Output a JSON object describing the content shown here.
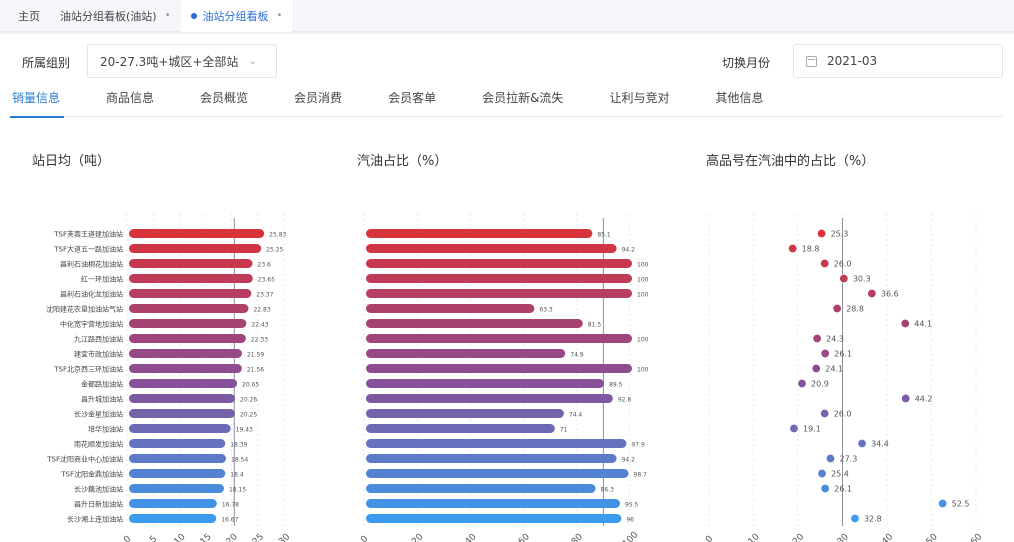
{
  "page_tabs": [
    {
      "label": "主页",
      "active": false,
      "closable": false
    },
    {
      "label": "油站分组看板(油站)",
      "active": false,
      "closable": true
    },
    {
      "label": "油站分组看板",
      "active": true,
      "closable": true
    }
  ],
  "filters": {
    "group_label": "所属组别",
    "group_value": "20-27.3吨+城区+全部站",
    "month_label": "切换月份",
    "month_value": "2021-03"
  },
  "sub_tabs": [
    "销量信息",
    "商品信息",
    "会员概览",
    "会员消费",
    "会员客单",
    "会员拉新&流失",
    "让利与竞对",
    "其他信息"
  ],
  "active_sub_tab": 0,
  "colors": {
    "accent": "#2b7cd3",
    "gradient_top": "#d7333b",
    "gradient_mid": "#8a4d93",
    "gradient_bottom": "#3a9bef"
  },
  "chart_data": [
    {
      "type": "bar",
      "orientation": "horizontal",
      "title": "站日均（吨）",
      "categories": [
        "TSF芙蓉王道建加油站",
        "TSF大道五一路加油站",
        "昌利石油桐花加油站",
        "红一环加油站",
        "昌利石油化龙加油站",
        "沈阳建花农垦加油站气站",
        "中化宽宇营地加油站",
        "九江路西加油站",
        "建宜市政加油站",
        "TSF北京西三环加油站",
        "金都路加油站",
        "昌升城加油站",
        "长沙金星加油站",
        "培华加油站",
        "雨花顺发加油站",
        "TSF沈阳商业中心加油站",
        "TSF沈阳金鼎加油站",
        "长沙藕池加油站",
        "昌升日新加油站",
        "长沙湘上连加油站"
      ],
      "values": [
        25.83,
        25.25,
        23.6,
        23.65,
        23.37,
        22.83,
        22.43,
        22.33,
        21.59,
        21.56,
        20.65,
        20.26,
        20.25,
        19.43,
        18.39,
        18.54,
        18.4,
        18.15,
        16.78,
        16.67
      ],
      "value_labels": [
        "25.83",
        "25.25",
        "23.6",
        "23.65",
        "23.37",
        "22.83",
        "22.43",
        "22.33",
        "21.59",
        "21.56",
        "20.65",
        "20.26",
        "20.25",
        "19.43",
        "18.39",
        "18.54",
        "18.4",
        "18.15",
        "16.78",
        "16.67"
      ],
      "xticks": [
        "0",
        "5",
        "10",
        "15",
        "20",
        "25",
        "30"
      ],
      "xlim": [
        0,
        30
      ],
      "reference_line": 20.5,
      "grid": true
    },
    {
      "type": "bar",
      "orientation": "horizontal",
      "title": "汽油占比（%）",
      "values": [
        85.1,
        94.2,
        100,
        100,
        100,
        63.3,
        81.5,
        100,
        74.9,
        100,
        89.5,
        92.8,
        74.4,
        71,
        97.9,
        94.2,
        98.7,
        86.3,
        95.5,
        96
      ],
      "value_labels": [
        "85.1",
        "94.2",
        "100",
        "100",
        "100",
        "63.3",
        "81.5",
        "100",
        "74.9",
        "100",
        "89.5",
        "92.8",
        "74.4",
        "71",
        "97.9",
        "94.2",
        "98.7",
        "86.3",
        "95.5",
        "96"
      ],
      "xticks": [
        "0",
        "20",
        "40",
        "60",
        "80",
        "100"
      ],
      "xlim": [
        0,
        100
      ],
      "reference_line": 90,
      "grid": true
    },
    {
      "type": "scatter",
      "title": "高品号在汽油中的占比（%）",
      "values": [
        25.3,
        18.8,
        26.0,
        30.3,
        36.6,
        28.8,
        44.1,
        24.3,
        26.1,
        24.1,
        20.9,
        44.2,
        26.0,
        19.1,
        34.4,
        27.3,
        25.4,
        26.1,
        52.5,
        32.8
      ],
      "value_labels": [
        "25.3",
        "18.8",
        "26.0",
        "30.3",
        "36.6",
        "28.8",
        "44.1",
        "24.3",
        "26.1",
        "24.1",
        "20.9",
        "44.2",
        "26.0",
        "19.1",
        "34.4",
        "27.3",
        "25.4",
        "26.1",
        "52.5",
        "32.8"
      ],
      "xticks": [
        "0",
        "10",
        "20",
        "30",
        "40",
        "50",
        "60"
      ],
      "xlim": [
        0,
        60
      ],
      "reference_line": 30,
      "grid": true
    }
  ]
}
